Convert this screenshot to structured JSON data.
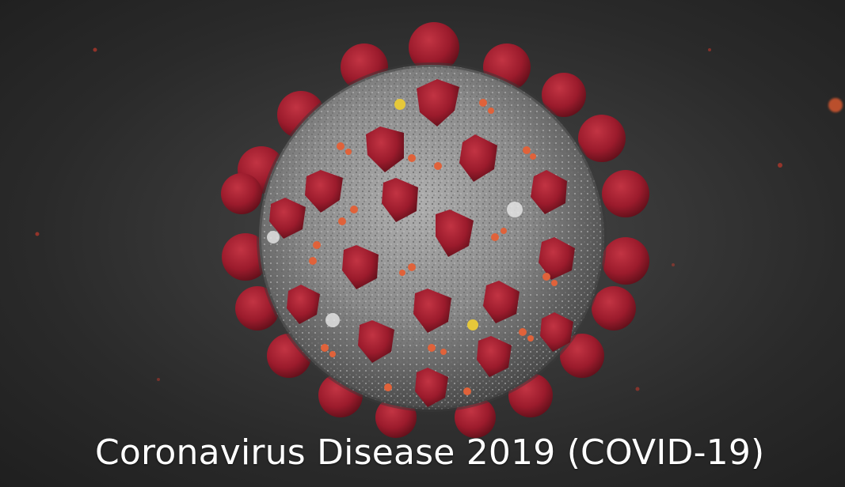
{
  "image": {
    "subject_icon": "coronavirus-particle-icon",
    "caption": "Coronavirus Disease 2019 (COVID-19)"
  },
  "palette": {
    "background": "#2b2b2b",
    "envelope": "#8e8e8e",
    "spike": "#9b1b2c",
    "spike_highlight": "#c23443",
    "e_protein": "#e0623a",
    "m_protein": "#e6c83a"
  }
}
